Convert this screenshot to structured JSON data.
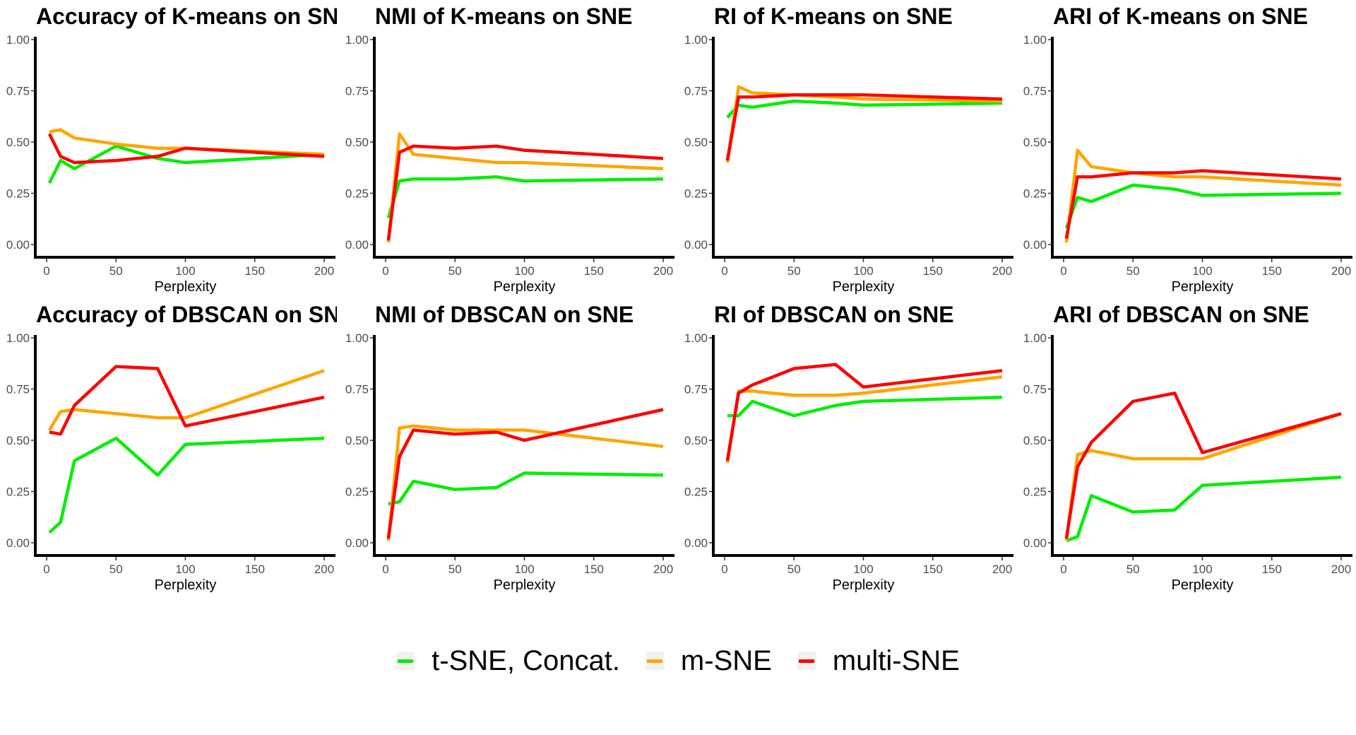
{
  "chart_data": [
    {
      "type": "line",
      "title": "Accuracy of K-means on SNE",
      "xlabel": "Perplexity",
      "ylabel": "",
      "xlim": [
        0,
        200
      ],
      "ylim": [
        0,
        1
      ],
      "xticks": [
        0,
        50,
        100,
        150,
        200
      ],
      "yticks": [
        "0.00",
        "0.25",
        "0.50",
        "0.75",
        "1.00"
      ],
      "x": [
        2,
        10,
        20,
        50,
        80,
        100,
        200
      ],
      "series": [
        {
          "name": "t-SNE, Concat.",
          "color": "#00ee00",
          "values": [
            0.3,
            0.41,
            0.37,
            0.48,
            0.42,
            0.4,
            0.44
          ]
        },
        {
          "name": "m-SNE",
          "color": "#ffa500",
          "values": [
            0.55,
            0.56,
            0.52,
            0.49,
            0.47,
            0.47,
            0.44
          ]
        },
        {
          "name": "multi-SNE",
          "color": "#ff0000",
          "values": [
            0.54,
            0.43,
            0.4,
            0.41,
            0.43,
            0.47,
            0.43
          ]
        }
      ]
    },
    {
      "type": "line",
      "title": "NMI of K-means on SNE",
      "xlabel": "Perplexity",
      "ylabel": "",
      "xlim": [
        0,
        200
      ],
      "ylim": [
        0,
        1
      ],
      "xticks": [
        0,
        50,
        100,
        150,
        200
      ],
      "yticks": [
        "0.00",
        "0.25",
        "0.50",
        "0.75",
        "1.00"
      ],
      "x": [
        2,
        10,
        20,
        50,
        80,
        100,
        200
      ],
      "series": [
        {
          "name": "t-SNE, Concat.",
          "color": "#00ee00",
          "values": [
            0.13,
            0.31,
            0.32,
            0.32,
            0.33,
            0.31,
            0.32
          ]
        },
        {
          "name": "m-SNE",
          "color": "#ffa500",
          "values": [
            0.01,
            0.54,
            0.44,
            0.42,
            0.4,
            0.4,
            0.37
          ]
        },
        {
          "name": "multi-SNE",
          "color": "#ff0000",
          "values": [
            0.02,
            0.45,
            0.48,
            0.47,
            0.48,
            0.46,
            0.42
          ]
        }
      ]
    },
    {
      "type": "line",
      "title": "RI of K-means on SNE",
      "xlabel": "Perplexity",
      "ylabel": "",
      "xlim": [
        0,
        200
      ],
      "ylim": [
        0,
        1
      ],
      "xticks": [
        0,
        50,
        100,
        150,
        200
      ],
      "yticks": [
        "0.00",
        "0.25",
        "0.50",
        "0.75",
        "1.00"
      ],
      "x": [
        2,
        10,
        20,
        50,
        80,
        100,
        200
      ],
      "series": [
        {
          "name": "t-SNE, Concat.",
          "color": "#00ee00",
          "values": [
            0.62,
            0.68,
            0.67,
            0.7,
            0.69,
            0.68,
            0.69
          ]
        },
        {
          "name": "m-SNE",
          "color": "#ffa500",
          "values": [
            0.4,
            0.77,
            0.74,
            0.73,
            0.72,
            0.71,
            0.7
          ]
        },
        {
          "name": "multi-SNE",
          "color": "#ff0000",
          "values": [
            0.41,
            0.72,
            0.72,
            0.73,
            0.73,
            0.73,
            0.71
          ]
        }
      ]
    },
    {
      "type": "line",
      "title": "ARI of K-means on SNE",
      "xlabel": "Perplexity",
      "ylabel": "",
      "xlim": [
        0,
        200
      ],
      "ylim": [
        0,
        1
      ],
      "xticks": [
        0,
        50,
        100,
        150,
        200
      ],
      "yticks": [
        "0.00",
        "0.25",
        "0.50",
        "0.75",
        "1.00"
      ],
      "x": [
        2,
        10,
        20,
        50,
        80,
        100,
        200
      ],
      "series": [
        {
          "name": "t-SNE, Concat.",
          "color": "#00ee00",
          "values": [
            0.08,
            0.23,
            0.21,
            0.29,
            0.27,
            0.24,
            0.25
          ]
        },
        {
          "name": "m-SNE",
          "color": "#ffa500",
          "values": [
            0.01,
            0.46,
            0.38,
            0.35,
            0.33,
            0.33,
            0.29
          ]
        },
        {
          "name": "multi-SNE",
          "color": "#ff0000",
          "values": [
            0.03,
            0.33,
            0.33,
            0.35,
            0.35,
            0.36,
            0.32
          ]
        }
      ]
    },
    {
      "type": "line",
      "title": "Accuracy of DBSCAN on SNE",
      "xlabel": "Perplexity",
      "ylabel": "",
      "xlim": [
        0,
        200
      ],
      "ylim": [
        0,
        1
      ],
      "xticks": [
        0,
        50,
        100,
        150,
        200
      ],
      "yticks": [
        "0.00",
        "0.25",
        "0.50",
        "0.75",
        "1.00"
      ],
      "x": [
        2,
        10,
        20,
        50,
        80,
        100,
        200
      ],
      "series": [
        {
          "name": "t-SNE, Concat.",
          "color": "#00ee00",
          "values": [
            0.05,
            0.1,
            0.4,
            0.51,
            0.33,
            0.48,
            0.51
          ]
        },
        {
          "name": "m-SNE",
          "color": "#ffa500",
          "values": [
            0.55,
            0.64,
            0.65,
            0.63,
            0.61,
            0.61,
            0.84
          ]
        },
        {
          "name": "multi-SNE",
          "color": "#ff0000",
          "values": [
            0.54,
            0.53,
            0.67,
            0.86,
            0.85,
            0.57,
            0.71
          ]
        }
      ]
    },
    {
      "type": "line",
      "title": "NMI of DBSCAN on SNE",
      "xlabel": "Perplexity",
      "ylabel": "",
      "xlim": [
        0,
        200
      ],
      "ylim": [
        0,
        1
      ],
      "xticks": [
        0,
        50,
        100,
        150,
        200
      ],
      "yticks": [
        "0.00",
        "0.25",
        "0.50",
        "0.75",
        "1.00"
      ],
      "x": [
        2,
        10,
        20,
        50,
        80,
        100,
        200
      ],
      "series": [
        {
          "name": "t-SNE, Concat.",
          "color": "#00ee00",
          "values": [
            0.19,
            0.2,
            0.3,
            0.26,
            0.27,
            0.34,
            0.33
          ]
        },
        {
          "name": "m-SNE",
          "color": "#ffa500",
          "values": [
            0.01,
            0.56,
            0.57,
            0.55,
            0.55,
            0.55,
            0.47
          ]
        },
        {
          "name": "multi-SNE",
          "color": "#ff0000",
          "values": [
            0.02,
            0.42,
            0.55,
            0.53,
            0.54,
            0.5,
            0.65
          ]
        }
      ]
    },
    {
      "type": "line",
      "title": "RI of DBSCAN on SNE",
      "xlabel": "Perplexity",
      "ylabel": "",
      "xlim": [
        0,
        200
      ],
      "ylim": [
        0,
        1
      ],
      "xticks": [
        0,
        50,
        100,
        150,
        200
      ],
      "yticks": [
        "0.00",
        "0.25",
        "0.50",
        "0.75",
        "1.00"
      ],
      "x": [
        2,
        10,
        20,
        50,
        80,
        100,
        200
      ],
      "series": [
        {
          "name": "t-SNE, Concat.",
          "color": "#00ee00",
          "values": [
            0.62,
            0.62,
            0.69,
            0.62,
            0.67,
            0.69,
            0.71
          ]
        },
        {
          "name": "m-SNE",
          "color": "#ffa500",
          "values": [
            0.39,
            0.74,
            0.74,
            0.72,
            0.72,
            0.73,
            0.81
          ]
        },
        {
          "name": "multi-SNE",
          "color": "#ff0000",
          "values": [
            0.4,
            0.73,
            0.77,
            0.85,
            0.87,
            0.76,
            0.84
          ]
        }
      ]
    },
    {
      "type": "line",
      "title": "ARI of DBSCAN on SNE",
      "xlabel": "Perplexity",
      "ylabel": "",
      "xlim": [
        0,
        200
      ],
      "ylim": [
        0,
        1
      ],
      "xticks": [
        0,
        50,
        100,
        150,
        200
      ],
      "yticks": [
        "0.00",
        "0.25",
        "0.50",
        "0.75",
        "1.00"
      ],
      "x": [
        2,
        10,
        20,
        50,
        80,
        100,
        200
      ],
      "series": [
        {
          "name": "t-SNE, Concat.",
          "color": "#00ee00",
          "values": [
            0.01,
            0.03,
            0.23,
            0.15,
            0.16,
            0.28,
            0.32
          ]
        },
        {
          "name": "m-SNE",
          "color": "#ffa500",
          "values": [
            0.01,
            0.43,
            0.45,
            0.41,
            0.41,
            0.41,
            0.63
          ]
        },
        {
          "name": "multi-SNE",
          "color": "#ff0000",
          "values": [
            0.02,
            0.37,
            0.49,
            0.69,
            0.73,
            0.44,
            0.63
          ]
        }
      ]
    }
  ],
  "legend": [
    {
      "label": "t-SNE, Concat.",
      "color": "#00ee00"
    },
    {
      "label": "m-SNE",
      "color": "#ffa500"
    },
    {
      "label": "multi-SNE",
      "color": "#ff0000"
    }
  ]
}
